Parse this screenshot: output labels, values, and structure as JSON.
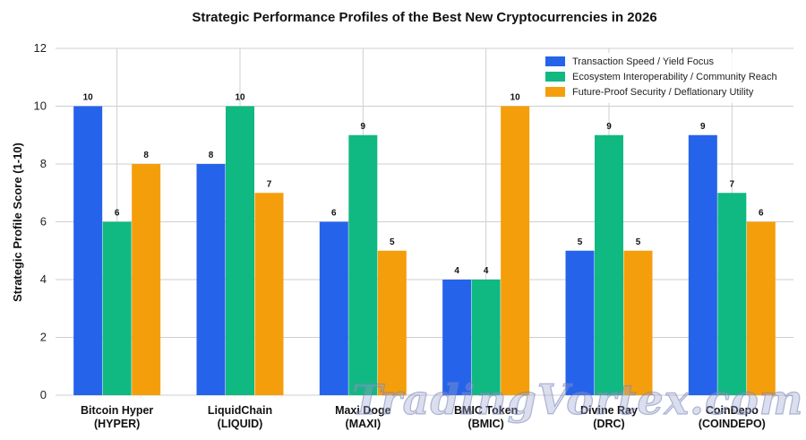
{
  "chart_data": {
    "type": "bar",
    "title": "Strategic Performance Profiles of the Best New Cryptocurrencies in 2026",
    "xlabel": "",
    "ylabel": "Strategic Profile Score (1-10)",
    "ylim": [
      0,
      12
    ],
    "yticks": [
      0,
      2,
      4,
      6,
      8,
      10,
      12
    ],
    "grid": true,
    "legend_position": "top-right",
    "categories": [
      [
        "Bitcoin Hyper",
        "(HYPER)"
      ],
      [
        "LiquidChain",
        "(LIQUID)"
      ],
      [
        "Maxi Doge",
        "(MAXI)"
      ],
      [
        "BMIC Token",
        "(BMIC)"
      ],
      [
        "Divine Ray",
        "(DRC)"
      ],
      [
        "CoinDepo",
        "(COINDEPO)"
      ]
    ],
    "series": [
      {
        "name": "Transaction Speed / Yield Focus",
        "color": "#2563eb",
        "values": [
          10,
          8,
          6,
          4,
          5,
          9
        ]
      },
      {
        "name": "Ecosystem Interoperability / Community Reach",
        "color": "#10b981",
        "values": [
          6,
          10,
          9,
          4,
          9,
          7
        ]
      },
      {
        "name": "Future-Proof Security / Deflationary Utility",
        "color": "#f59e0b",
        "values": [
          8,
          7,
          5,
          10,
          5,
          6
        ]
      }
    ]
  },
  "watermark": "TradingVortex.com"
}
